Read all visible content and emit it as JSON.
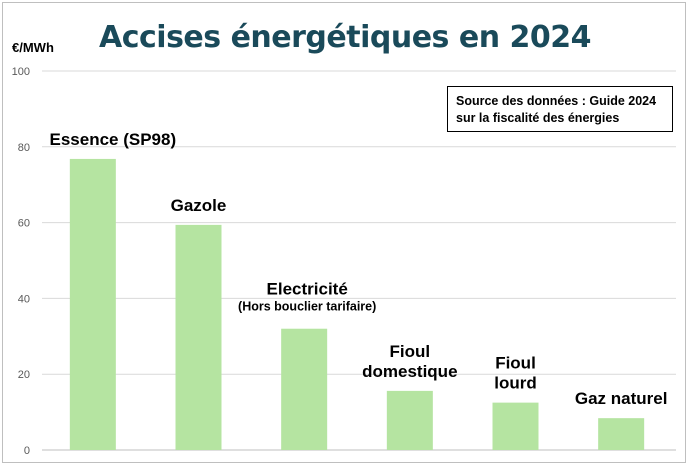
{
  "chart_data": {
    "type": "bar",
    "title": "Accises énergétiques en 2024",
    "ylabel": "€/MWh",
    "ylim": [
      0,
      100
    ],
    "yticks": [
      0,
      20,
      40,
      60,
      80,
      100
    ],
    "grid": true,
    "bar_color": "#b5e4a1",
    "categories": [
      [
        "Essence (SP98)"
      ],
      [
        "Gazole"
      ],
      [
        "Electricité",
        "(Hors bouclier tarifaire)"
      ],
      [
        "Fioul",
        "domestique"
      ],
      [
        "Fioul",
        "lourd"
      ],
      [
        "Gaz naturel"
      ]
    ],
    "values": [
      76.8,
      59.4,
      32.0,
      15.6,
      12.5,
      8.4
    ],
    "annotation": [
      "Source des données : Guide 2024",
      "sur la fiscalité des énergies"
    ]
  }
}
